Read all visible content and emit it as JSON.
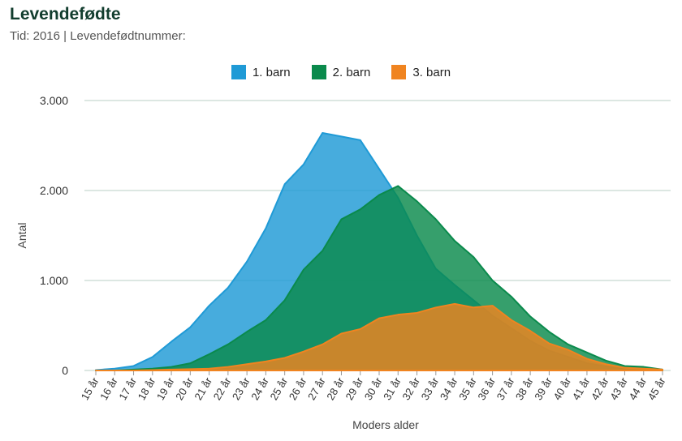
{
  "header": {
    "title": "Levendefødte",
    "subtitle": "Tid: 2016 | Levendefødtnummer:"
  },
  "chart_data": {
    "type": "area",
    "xlabel": "Moders alder",
    "ylabel": "Antal",
    "ylim": [
      0,
      3000
    ],
    "yticks": [
      0,
      1000,
      2000,
      3000
    ],
    "ytick_labels": [
      "0",
      "1.000",
      "2.000",
      "3.000"
    ],
    "grid": true,
    "legend_position": "top-center",
    "categories": [
      "15 år",
      "16 år",
      "17 år",
      "18 år",
      "19 år",
      "20 år",
      "21 år",
      "22 år",
      "23 år",
      "24 år",
      "25 år",
      "26 år",
      "27 år",
      "28 år",
      "29 år",
      "30 år",
      "31 år",
      "32 år",
      "33 år",
      "34 år",
      "35 år",
      "36 år",
      "37 år",
      "38 år",
      "39 år",
      "40 år",
      "41 år",
      "42 år",
      "43 år",
      "44 år",
      "45 år"
    ],
    "series": [
      {
        "name": "1. barn",
        "color": "#1f9ad6",
        "values": [
          5,
          20,
          50,
          150,
          320,
          480,
          720,
          920,
          1210,
          1580,
          2070,
          2290,
          2640,
          2600,
          2560,
          2240,
          1920,
          1500,
          1130,
          950,
          780,
          610,
          470,
          330,
          220,
          150,
          80,
          45,
          20,
          15,
          5
        ]
      },
      {
        "name": "2. barn",
        "color": "#0a8a4c",
        "values": [
          0,
          0,
          10,
          20,
          40,
          80,
          180,
          290,
          430,
          560,
          780,
          1120,
          1330,
          1680,
          1790,
          1950,
          2050,
          1880,
          1680,
          1440,
          1260,
          1000,
          820,
          600,
          430,
          290,
          200,
          110,
          50,
          40,
          10
        ]
      },
      {
        "name": "3. barn",
        "color": "#f08420",
        "values": [
          0,
          0,
          0,
          5,
          10,
          15,
          20,
          40,
          70,
          100,
          140,
          210,
          290,
          410,
          460,
          580,
          620,
          640,
          700,
          740,
          700,
          720,
          560,
          440,
          300,
          230,
          130,
          70,
          30,
          20,
          10
        ]
      }
    ]
  }
}
